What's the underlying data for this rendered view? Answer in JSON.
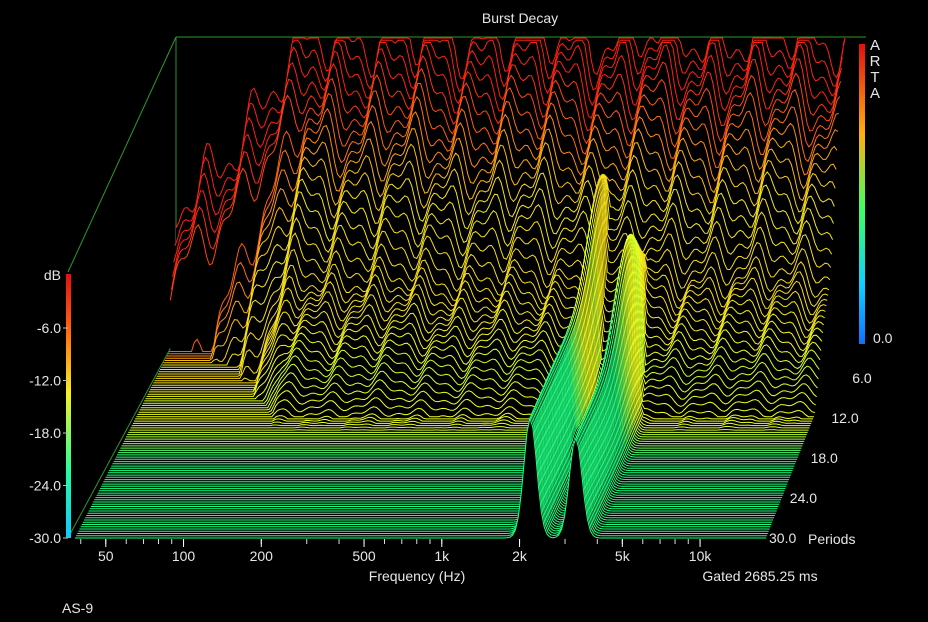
{
  "chart_data": {
    "type": "waterfall",
    "title": "Burst Decay",
    "watermark": "ARTA",
    "footer_left": "AS-9",
    "xlabel": "Frequency (Hz)",
    "x_scale": "log",
    "xlim": [
      38,
      18000
    ],
    "x_tick_labels": [
      {
        "value": 50,
        "label": "50"
      },
      {
        "value": 100,
        "label": "100"
      },
      {
        "value": 200,
        "label": "200"
      },
      {
        "value": 500,
        "label": "500"
      },
      {
        "value": 1000,
        "label": "1k"
      },
      {
        "value": 2000,
        "label": "2k"
      },
      {
        "value": 5000,
        "label": "5k"
      },
      {
        "value": 10000,
        "label": "10k"
      }
    ],
    "zlabel": "dB",
    "zlim": [
      -30,
      0
    ],
    "z_tick_labels": [
      "-6.0",
      "-12.0",
      "-18.0",
      "-24.0",
      "-30.0"
    ],
    "depth_label": "Periods",
    "depth_lim": [
      0,
      30
    ],
    "depth_tick_labels": [
      "0.0",
      "6.0",
      "12.0",
      "18.0",
      "24.0",
      "30.0"
    ],
    "gated_text": "Gated 2685.25 ms",
    "colormap": [
      "#1030ff",
      "#10c0ff",
      "#20ff80",
      "#f0ff20",
      "#ff9010",
      "#ff2010"
    ],
    "colorbar": "left",
    "grid": false,
    "series": [
      {
        "periods": 0.0,
        "level_db": 0
      },
      {
        "periods": 6.0,
        "level_db": -20
      },
      {
        "periods": 12.0,
        "level_db": -30
      },
      {
        "periods": 18.0,
        "level_db": -30
      },
      {
        "periods": 24.0,
        "level_db": -30
      },
      {
        "periods": 30.0,
        "level_db": -30
      }
    ],
    "peaks": [
      {
        "frequency": 2200,
        "periods": 6.0,
        "level_db": -10
      },
      {
        "frequency": 3300,
        "periods": 12.0,
        "level_db": -12
      },
      {
        "frequency": 2400,
        "periods": 18.0,
        "level_db": -27
      }
    ]
  }
}
